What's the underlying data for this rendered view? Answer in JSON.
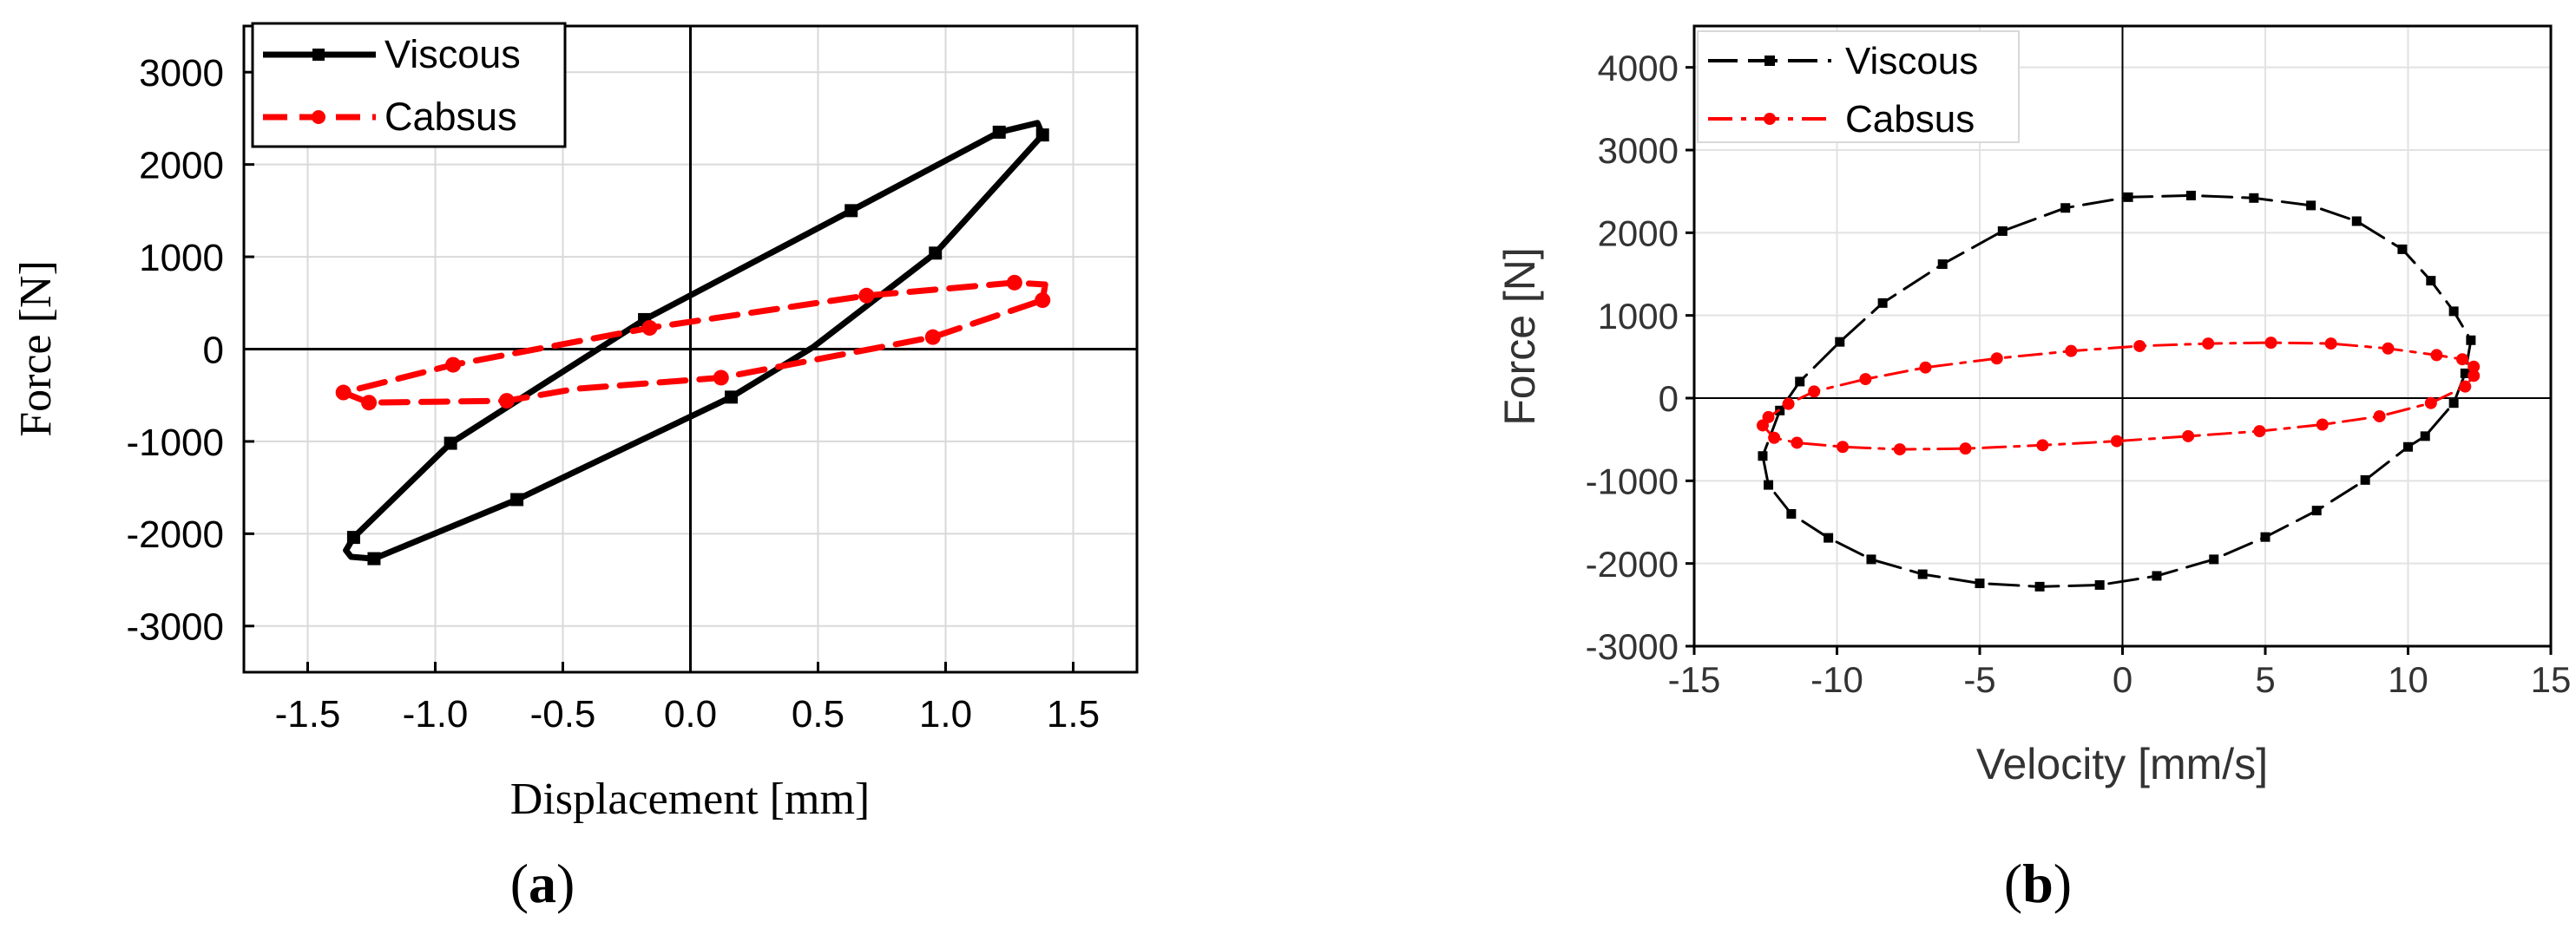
{
  "chart_data": [
    {
      "panel_label_parts": [
        "(",
        "a",
        ")"
      ],
      "type": "line",
      "xlabel": "Displacement [mm]",
      "ylabel": "Force [N]",
      "xlim": [
        -1.75,
        1.75
      ],
      "ylim": [
        -3500,
        3500
      ],
      "xticks": [
        -1.5,
        -1.0,
        -0.5,
        0.0,
        0.5,
        1.0,
        1.5
      ],
      "xtick_labels": [
        "-1.5",
        "-1.0",
        "-0.5",
        "0.0",
        "0.5",
        "1.0",
        "1.5"
      ],
      "yticks": [
        -3000,
        -2000,
        -1000,
        0,
        1000,
        2000,
        3000
      ],
      "ytick_labels": [
        "-3000",
        "-2000",
        "-1000",
        "0",
        "1000",
        "2000",
        "3000"
      ],
      "grid": true,
      "legend_position": "top-left",
      "zero_lines": true,
      "series": [
        {
          "name": "Viscous",
          "color": "#000000",
          "dash": "solid",
          "marker": "square",
          "points": [
            [
              -1.33,
              -2250
            ],
            [
              -1.24,
              -2270
            ],
            [
              -0.68,
              -1630
            ],
            [
              0.16,
              -520
            ],
            [
              0.48,
              20
            ],
            [
              0.96,
              1040
            ],
            [
              1.38,
              2320
            ],
            [
              1.36,
              2450
            ],
            [
              1.21,
              2350
            ],
            [
              0.63,
              1500
            ],
            [
              -0.18,
              320
            ],
            [
              -0.94,
              -1020
            ],
            [
              -1.32,
              -2040
            ],
            [
              -1.35,
              -2180
            ],
            [
              -1.33,
              -2250
            ]
          ],
          "marker_points": [
            [
              -1.24,
              -2270
            ],
            [
              -0.68,
              -1630
            ],
            [
              0.16,
              -520
            ],
            [
              0.96,
              1040
            ],
            [
              1.38,
              2320
            ],
            [
              1.21,
              2350
            ],
            [
              0.63,
              1500
            ],
            [
              -0.18,
              320
            ],
            [
              -0.94,
              -1020
            ],
            [
              -1.32,
              -2040
            ]
          ]
        },
        {
          "name": "Cabsus",
          "color": "#ff0000",
          "dash": "dashed",
          "marker": "circle",
          "points": [
            [
              -1.36,
              -470
            ],
            [
              -1.26,
              -580
            ],
            [
              -0.72,
              -560
            ],
            [
              -0.45,
              -430
            ],
            [
              0.12,
              -310
            ],
            [
              0.95,
              130
            ],
            [
              1.38,
              530
            ],
            [
              1.39,
              700
            ],
            [
              1.27,
              720
            ],
            [
              0.69,
              580
            ],
            [
              -0.16,
              230
            ],
            [
              -0.93,
              -170
            ],
            [
              -1.36,
              -470
            ]
          ],
          "marker_points": [
            [
              -1.26,
              -580
            ],
            [
              -0.72,
              -560
            ],
            [
              0.12,
              -310
            ],
            [
              0.95,
              130
            ],
            [
              1.38,
              530
            ],
            [
              1.27,
              720
            ],
            [
              0.69,
              580
            ],
            [
              -0.16,
              230
            ],
            [
              -0.93,
              -170
            ],
            [
              -1.36,
              -470
            ]
          ]
        }
      ]
    },
    {
      "panel_label_parts": [
        "(",
        "b",
        ")"
      ],
      "type": "line",
      "xlabel": "Velocity [mm/s]",
      "ylabel": "Force [N]",
      "xlim": [
        -15,
        15
      ],
      "ylim": [
        -3000,
        4500
      ],
      "xticks": [
        -15,
        -10,
        -5,
        0,
        5,
        10,
        15
      ],
      "xtick_labels": [
        "-15",
        "-10",
        "-5",
        "0",
        "5",
        "10",
        "15"
      ],
      "yticks": [
        -3000,
        -2000,
        -1000,
        0,
        1000,
        2000,
        3000,
        4000
      ],
      "ytick_labels": [
        "-3000",
        "-2000",
        "-1000",
        "0",
        "1000",
        "2000",
        "3000",
        "4000"
      ],
      "grid": true,
      "legend_position": "top-left",
      "zero_lines": true,
      "series": [
        {
          "name": "Viscous",
          "color": "#000000",
          "dash": "dashed",
          "marker": "square",
          "points": [
            [
              -12.6,
              -700
            ],
            [
              -12.4,
              -1050
            ],
            [
              -11.6,
              -1400
            ],
            [
              -10.3,
              -1690
            ],
            [
              -8.8,
              -1950
            ],
            [
              -7.0,
              -2130
            ],
            [
              -5.0,
              -2240
            ],
            [
              -2.9,
              -2280
            ],
            [
              -0.8,
              -2260
            ],
            [
              1.2,
              -2150
            ],
            [
              3.2,
              -1950
            ],
            [
              5.0,
              -1680
            ],
            [
              6.8,
              -1360
            ],
            [
              8.5,
              -990
            ],
            [
              10.0,
              -590
            ],
            [
              10.6,
              -460
            ],
            [
              11.6,
              -60
            ],
            [
              12.0,
              300
            ],
            [
              12.2,
              700
            ],
            [
              11.6,
              1050
            ],
            [
              10.8,
              1420
            ],
            [
              9.8,
              1800
            ],
            [
              8.2,
              2140
            ],
            [
              6.6,
              2330
            ],
            [
              4.6,
              2420
            ],
            [
              2.4,
              2450
            ],
            [
              0.2,
              2430
            ],
            [
              -2.0,
              2300
            ],
            [
              -4.2,
              2020
            ],
            [
              -6.3,
              1620
            ],
            [
              -8.4,
              1150
            ],
            [
              -9.9,
              680
            ],
            [
              -11.3,
              200
            ],
            [
              -12.0,
              -150
            ],
            [
              -12.6,
              -700
            ]
          ]
        },
        {
          "name": "Cabsus",
          "color": "#ff0000",
          "dash": "dashdot",
          "marker": "circle",
          "points": [
            [
              -12.6,
              -330
            ],
            [
              -12.4,
              -230
            ],
            [
              -11.7,
              -70
            ],
            [
              -10.8,
              80
            ],
            [
              -9.0,
              230
            ],
            [
              -6.9,
              370
            ],
            [
              -4.4,
              480
            ],
            [
              -1.8,
              570
            ],
            [
              0.6,
              630
            ],
            [
              3.0,
              660
            ],
            [
              5.2,
              670
            ],
            [
              7.3,
              660
            ],
            [
              9.3,
              600
            ],
            [
              11.0,
              520
            ],
            [
              11.9,
              470
            ],
            [
              12.3,
              380
            ],
            [
              12.3,
              270
            ],
            [
              12.0,
              140
            ],
            [
              10.8,
              -60
            ],
            [
              9.0,
              -220
            ],
            [
              7.0,
              -320
            ],
            [
              4.8,
              -400
            ],
            [
              2.3,
              -460
            ],
            [
              -0.2,
              -520
            ],
            [
              -2.8,
              -570
            ],
            [
              -5.5,
              -610
            ],
            [
              -7.8,
              -620
            ],
            [
              -9.8,
              -590
            ],
            [
              -11.4,
              -540
            ],
            [
              -12.2,
              -480
            ],
            [
              -12.6,
              -330
            ]
          ]
        }
      ]
    }
  ]
}
